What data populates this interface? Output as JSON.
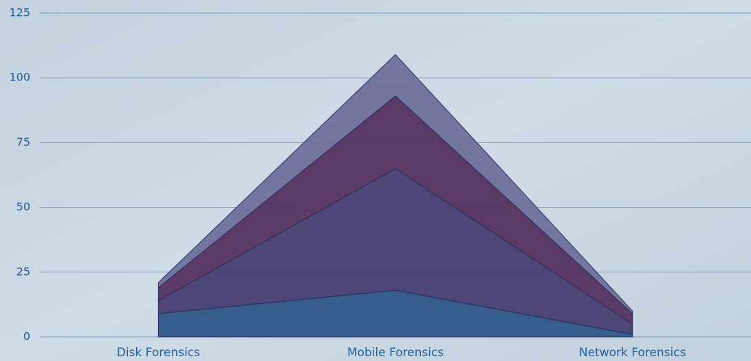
{
  "chart_data": {
    "type": "stacked_area",
    "categories": [
      "Disk Forensics",
      "Mobile Forensics",
      "Network Forensics"
    ],
    "series": [
      {
        "color": "#2a5286",
        "values": [
          9,
          18,
          1
        ]
      },
      {
        "color": "#433a6e",
        "values": [
          5,
          47,
          4
        ]
      },
      {
        "color": "#532d5c",
        "values": [
          5,
          28,
          4
        ]
      },
      {
        "color": "#6a6e9a",
        "values": [
          2,
          16,
          1
        ]
      }
    ],
    "ylim": [
      0,
      125
    ],
    "yticks": [
      0,
      25,
      50,
      75,
      100,
      125
    ],
    "grid": true
  }
}
